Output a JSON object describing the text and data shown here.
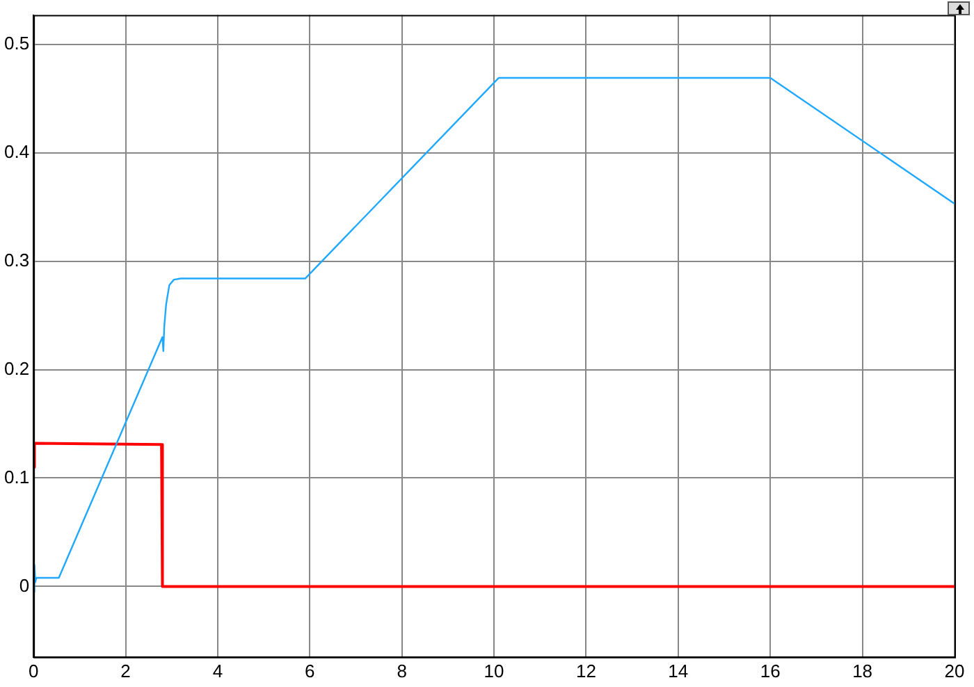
{
  "chart_data": {
    "type": "line",
    "grid": true,
    "legend": false,
    "marker": "none",
    "line_style": "solid",
    "xlim": [
      0,
      20
    ],
    "xticks": [
      0,
      2,
      4,
      6,
      8,
      10,
      12,
      14,
      16,
      18,
      20
    ],
    "ylim": [
      -0.065,
      0.527
    ],
    "yticks": [
      0,
      0.1,
      0.2,
      0.3,
      0.4,
      0.5
    ],
    "series": [
      {
        "color": "#1fa8ff",
        "x": [
          0,
          0.02,
          0.04,
          0.06,
          0.1,
          0.55,
          2.8,
          2.82,
          2.84,
          2.88,
          2.95,
          3.05,
          3.2,
          5.9,
          10.1,
          16,
          20
        ],
        "values": [
          -0.005,
          0.02,
          0.004,
          0.008,
          0.008,
          0.008,
          0.23,
          0.217,
          0.24,
          0.26,
          0.278,
          0.283,
          0.284,
          0.284,
          0.469,
          0.469,
          0.353
        ]
      },
      {
        "color": "#ff0000",
        "x": [
          0,
          0.02,
          2.78,
          2.8,
          20
        ],
        "values": [
          0.11,
          0.132,
          0.131,
          0,
          0
        ]
      }
    ]
  }
}
